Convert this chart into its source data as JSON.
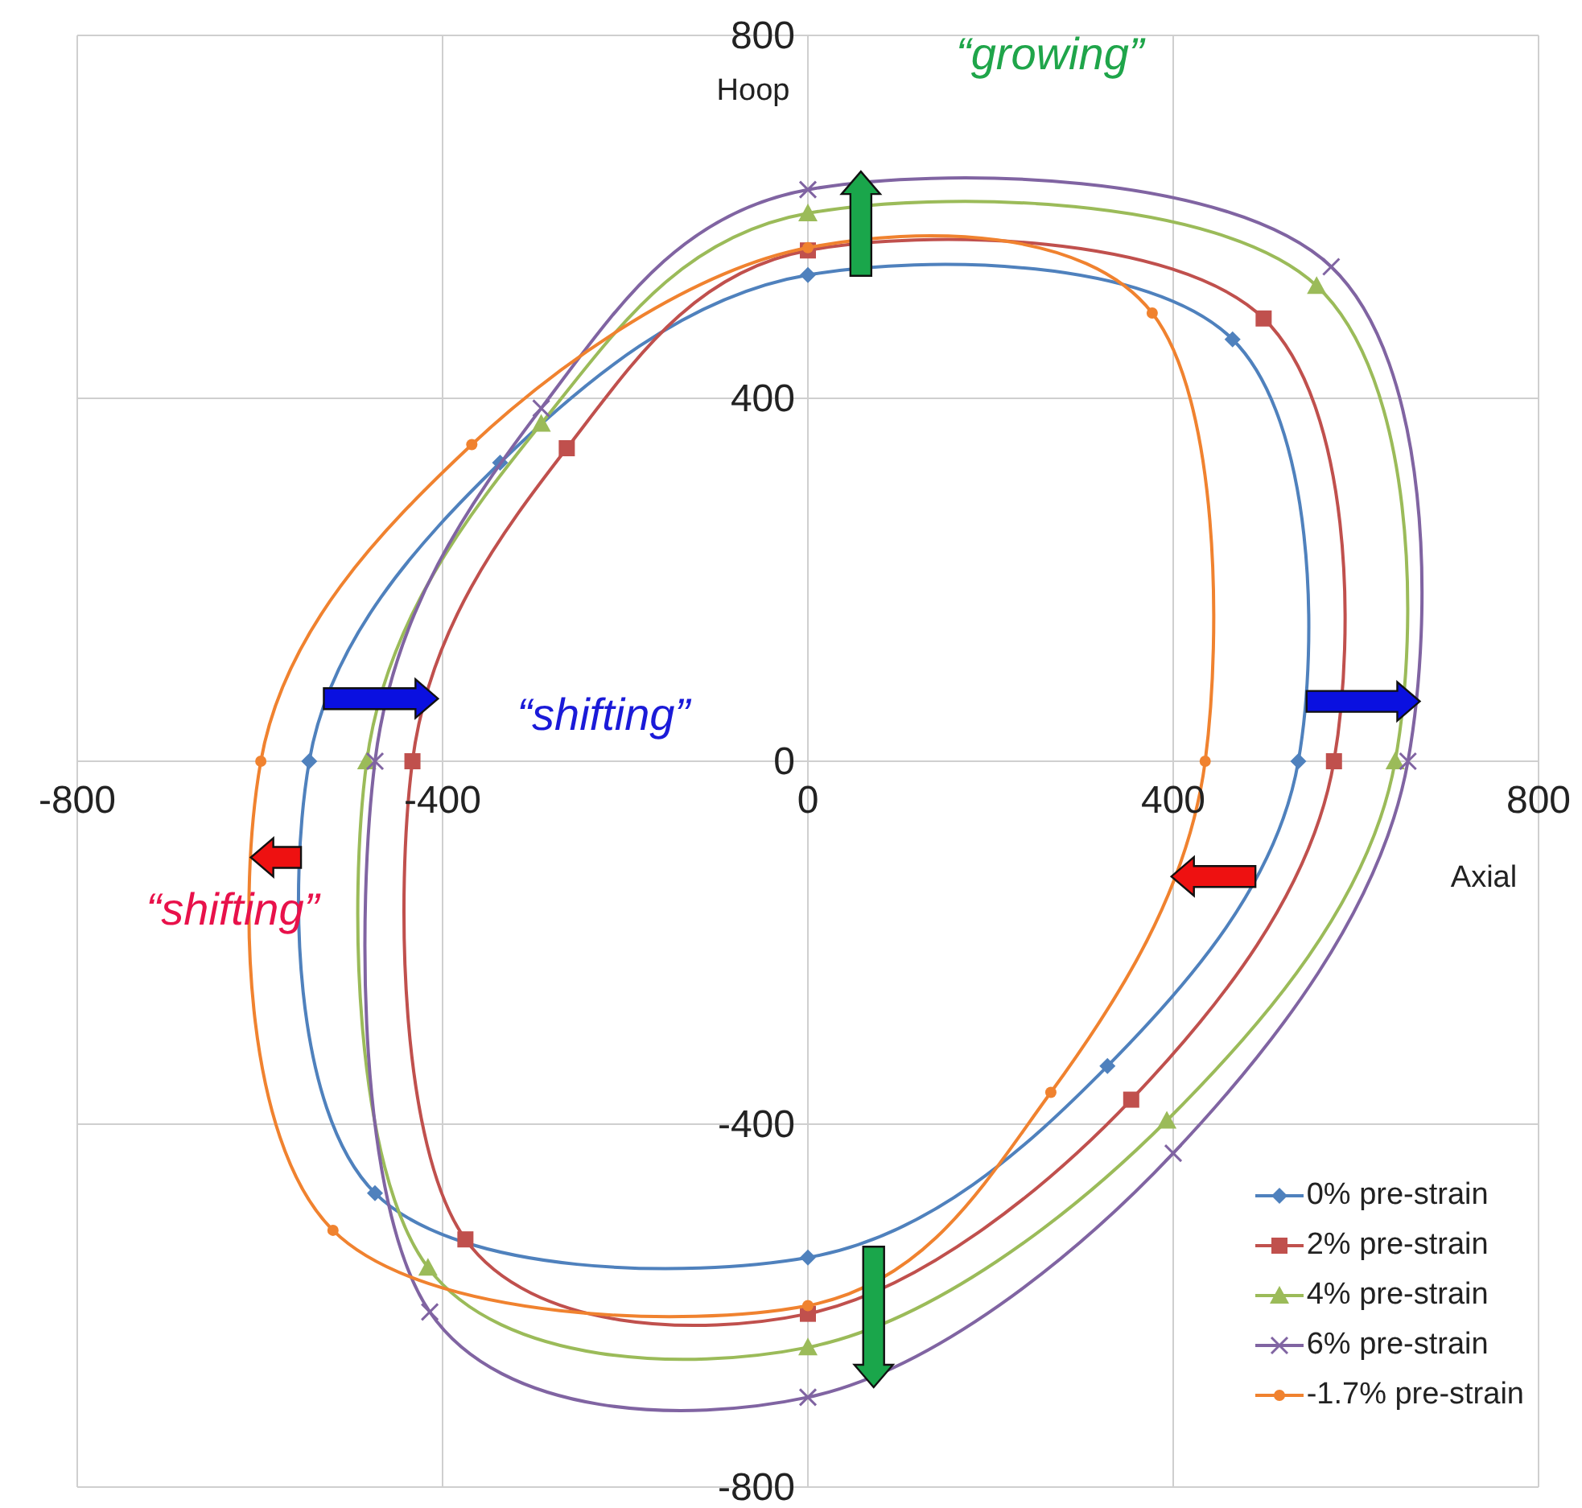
{
  "chart_data": {
    "type": "scatter",
    "xlabel": "Axial",
    "ylabel": "Hoop",
    "xlim": [
      -800,
      800
    ],
    "ylim": [
      -800,
      800
    ],
    "xticks": [
      -800,
      -400,
      0,
      400,
      800
    ],
    "yticks": [
      -800,
      -400,
      0,
      400,
      800
    ],
    "grid": true,
    "legend": "bottom right",
    "line_style": "solid",
    "annotations": [
      "“growing”",
      "“shifting”",
      "“shifting”"
    ],
    "series": [
      {
        "name": "0% pre-strain",
        "color": "#4f81bd",
        "marker": "diamond",
        "x": [
          0,
          465,
          537,
          328,
          0,
          -474,
          -546,
          -337
        ],
        "values": [
          536,
          465,
          0,
          -336,
          -547,
          -476,
          0,
          329
        ]
      },
      {
        "name": "2% pre-strain",
        "color": "#c0504d",
        "marker": "square",
        "x": [
          0,
          499,
          576,
          354,
          0,
          -375,
          -433,
          -264
        ],
        "values": [
          563,
          488,
          0,
          -373,
          -609,
          -527,
          0,
          345
        ]
      },
      {
        "name": "4% pre-strain",
        "color": "#9bbb59",
        "marker": "triangle",
        "x": [
          0,
          557,
          643,
          393,
          0,
          -416,
          -483,
          -292
        ],
        "values": [
          604,
          524,
          0,
          -396,
          -646,
          -558,
          0,
          372
        ]
      },
      {
        "name": "6% pre-strain",
        "color": "#8064a2",
        "marker": "cross",
        "x": [
          0,
          573,
          657,
          400,
          0,
          -414,
          -474,
          -292
        ],
        "values": [
          630,
          545,
          0,
          -432,
          -701,
          -607,
          0,
          389
        ]
      },
      {
        "name": "-1.7% pre-strain",
        "color": "#f0822f",
        "marker": "circle",
        "x": [
          0,
          377,
          435,
          266,
          0,
          -520,
          -599,
          -368
        ],
        "values": [
          566,
          494,
          0,
          -365,
          -600,
          -517,
          0,
          349
        ]
      }
    ]
  }
}
